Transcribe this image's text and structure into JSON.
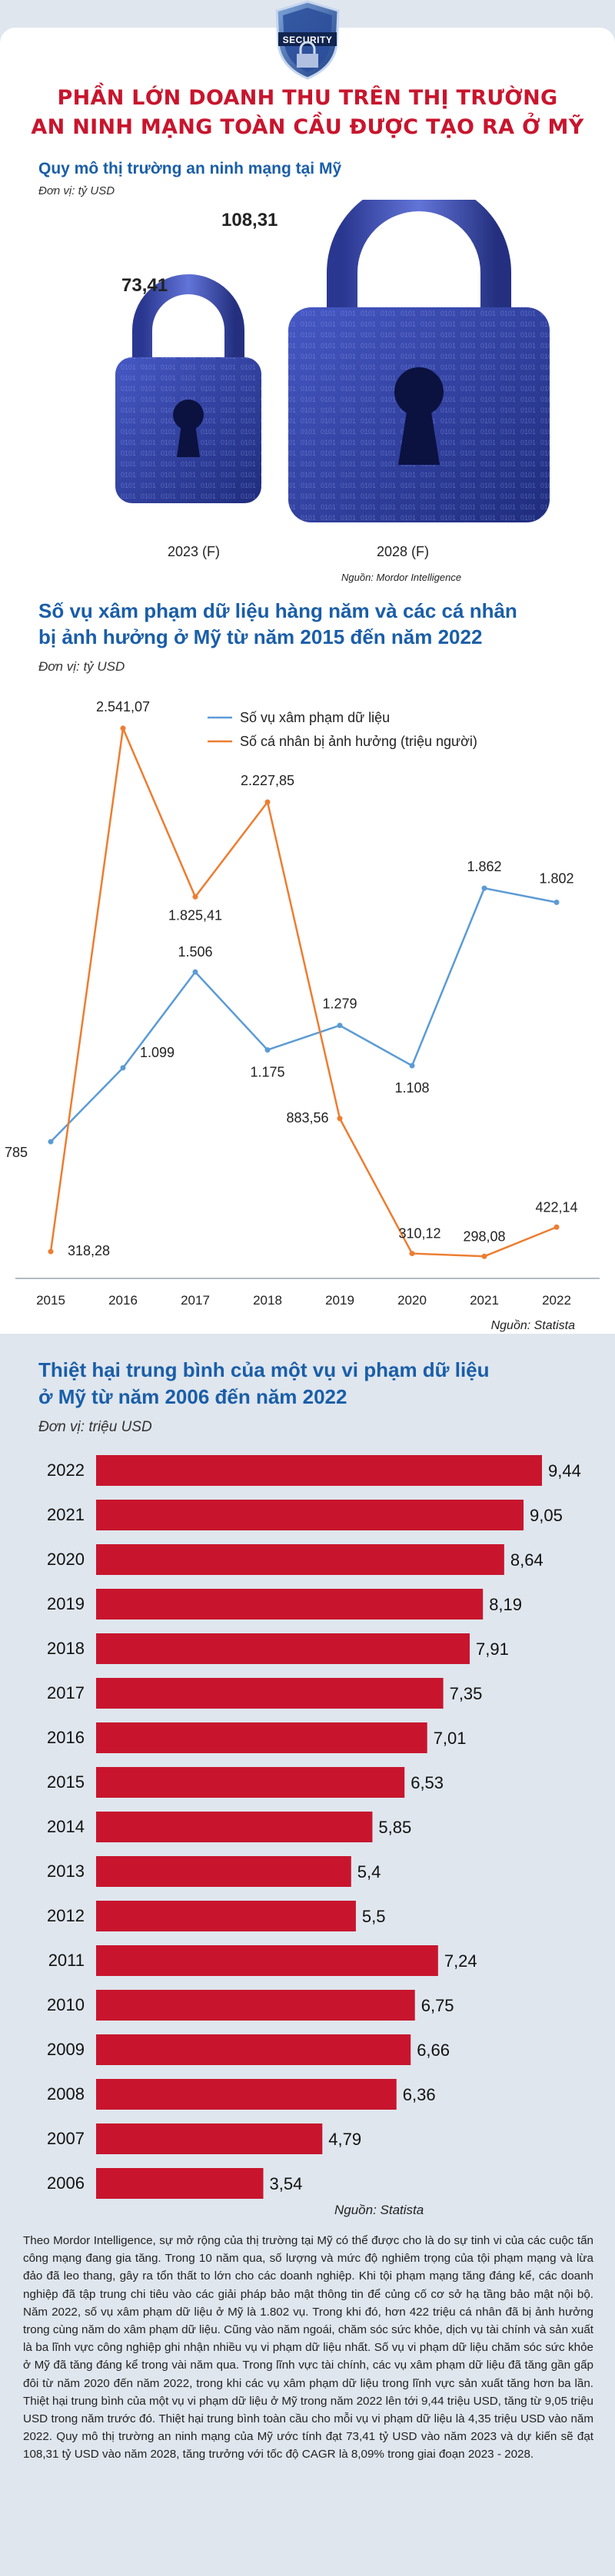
{
  "badge": "SECURITY",
  "headline": [
    "PHẦN LỚN DOANH THU TRÊN THỊ TRƯỜNG",
    "AN NINH MẠNG TOÀN CẦU ĐƯỢC TẠO RA Ở MỸ"
  ],
  "colors": {
    "accent_red": "#c8152d",
    "title_blue": "#1a5ea8",
    "line_blue": "#5b9bd5",
    "line_orange": "#ed7d31",
    "lock_blue": "#2e3f9c",
    "page_bg": "#dfe6ee"
  },
  "section1": {
    "title": "Quy mô thị trường an ninh mạng tại Mỹ",
    "unit": "Đơn vị: tỷ USD",
    "source": "Nguồn: Mordor Intelligence",
    "chart_data": {
      "type": "bar",
      "categories": [
        "2023 (F)",
        "2028 (F)"
      ],
      "values": [
        73.41,
        108.31
      ],
      "value_labels": [
        "73,41",
        "108,31"
      ],
      "title": "Quy mô thị trường an ninh mạng tại Mỹ",
      "ylabel": "tỷ USD"
    }
  },
  "section2": {
    "title": [
      "Số vụ xâm phạm dữ liệu hàng năm và các cá nhân",
      "bị ảnh hưởng ở Mỹ từ năm 2015 đến năm 2022"
    ],
    "unit": "Đơn vị: tỷ USD",
    "source": "Nguồn: Statista",
    "chart_data": {
      "type": "line",
      "x": [
        "2015",
        "2016",
        "2017",
        "2018",
        "2019",
        "2020",
        "2021",
        "2022"
      ],
      "series": [
        {
          "name": "Số vụ xâm phạm dữ liệu",
          "color": "#5b9bd5",
          "values": [
            785,
            1099,
            1506,
            1175,
            1279,
            1108,
            1862,
            1802
          ],
          "labels": [
            "785",
            "1.099",
            "1.506",
            "1.175",
            "1.279",
            "1.108",
            "1.862",
            "1.802"
          ]
        },
        {
          "name": "Số cá nhân bị ảnh hưởng (triệu người)",
          "color": "#ed7d31",
          "values": [
            318.28,
            2541.07,
            1825.41,
            2227.85,
            883.56,
            310.12,
            298.08,
            422.14
          ],
          "labels": [
            "318,28",
            "2.541,07",
            "1.825,41",
            "2.227,85",
            "883,56",
            "310,12",
            "298,08",
            "422,14"
          ]
        }
      ],
      "ylim": [
        250,
        2600
      ],
      "legend": "top-right",
      "grid": false
    }
  },
  "section3": {
    "title": [
      "Thiệt hại trung bình của một vụ vi phạm dữ liệu",
      "ở Mỹ từ năm 2006 đến năm 2022"
    ],
    "unit": "Đơn vị: triệu USD",
    "source": "Nguồn: Statista",
    "chart_data": {
      "type": "bar",
      "orientation": "horizontal",
      "categories": [
        "2022",
        "2021",
        "2020",
        "2019",
        "2018",
        "2017",
        "2016",
        "2015",
        "2014",
        "2013",
        "2012",
        "2011",
        "2010",
        "2009",
        "2008",
        "2007",
        "2006"
      ],
      "values": [
        9.44,
        9.05,
        8.64,
        8.19,
        7.91,
        7.35,
        7.01,
        6.53,
        5.85,
        5.4,
        5.5,
        7.24,
        6.75,
        6.66,
        6.36,
        4.79,
        3.54
      ],
      "value_labels": [
        "9,44",
        "9,05",
        "8,64",
        "8,19",
        "7,91",
        "7,35",
        "7,01",
        "6,53",
        "5,85",
        "5,4",
        "5,5",
        "7,24",
        "6,75",
        "6,66",
        "6,36",
        "4,79",
        "3,54"
      ],
      "color": "#c8152d",
      "xlim": [
        0,
        9.44
      ]
    }
  },
  "body_text": "Theo Mordor Intelligence, sự mở rộng của thị trường tại Mỹ có thể được cho là do sự tinh vi của các cuộc tấn công mạng đang gia tăng. Trong 10 năm qua, số lượng và mức độ nghiêm trọng của tội phạm mạng và lừa đảo đã leo thang, gây ra tổn thất to lớn cho các doanh nghiệp. Khi tội phạm mạng tăng đáng kể, các doanh nghiệp đã tập trung chi tiêu vào các giải pháp bảo mật thông tin để củng cố cơ sở hạ tầng bảo mật nội bộ. Năm 2022, số vụ xâm phạm dữ liệu ở Mỹ là 1.802 vụ. Trong khi đó, hơn 422 triệu cá nhân đã bị ảnh hưởng trong cùng năm do xâm phạm dữ liệu. Cũng vào năm ngoái, chăm sóc sức khỏe, dịch vụ tài chính và sản xuất là ba lĩnh vực công nghiệp ghi nhận nhiều vụ vi phạm dữ liệu nhất. Số vụ vi phạm dữ liệu chăm sóc sức khỏe ở Mỹ đã tăng đáng kể trong vài năm qua. Trong lĩnh vực tài chính, các vụ xâm phạm dữ liệu đã tăng gần gấp đôi từ năm 2020 đến năm 2022, trong khi các vụ xâm phạm dữ liệu trong lĩnh vực sản xuất tăng hơn ba lần. Thiệt hại trung bình của một vụ vi phạm dữ liệu ở Mỹ trong năm 2022 lên tới 9,44 triệu USD, tăng từ 9,05 triệu USD trong năm trước đó. Thiệt hại trung bình toàn cầu cho mỗi vụ vi phạm dữ liệu là 4,35 triệu USD vào năm 2022. Quy mô thị trường an ninh mạng của Mỹ ước tính đạt 73,41 tỷ USD vào năm 2023 và dự kiến sẽ đạt 108,31 tỷ USD vào năm 2028, tăng trưởng với tốc độ CAGR là 8,09% trong giai đoạn 2023 - 2028."
}
